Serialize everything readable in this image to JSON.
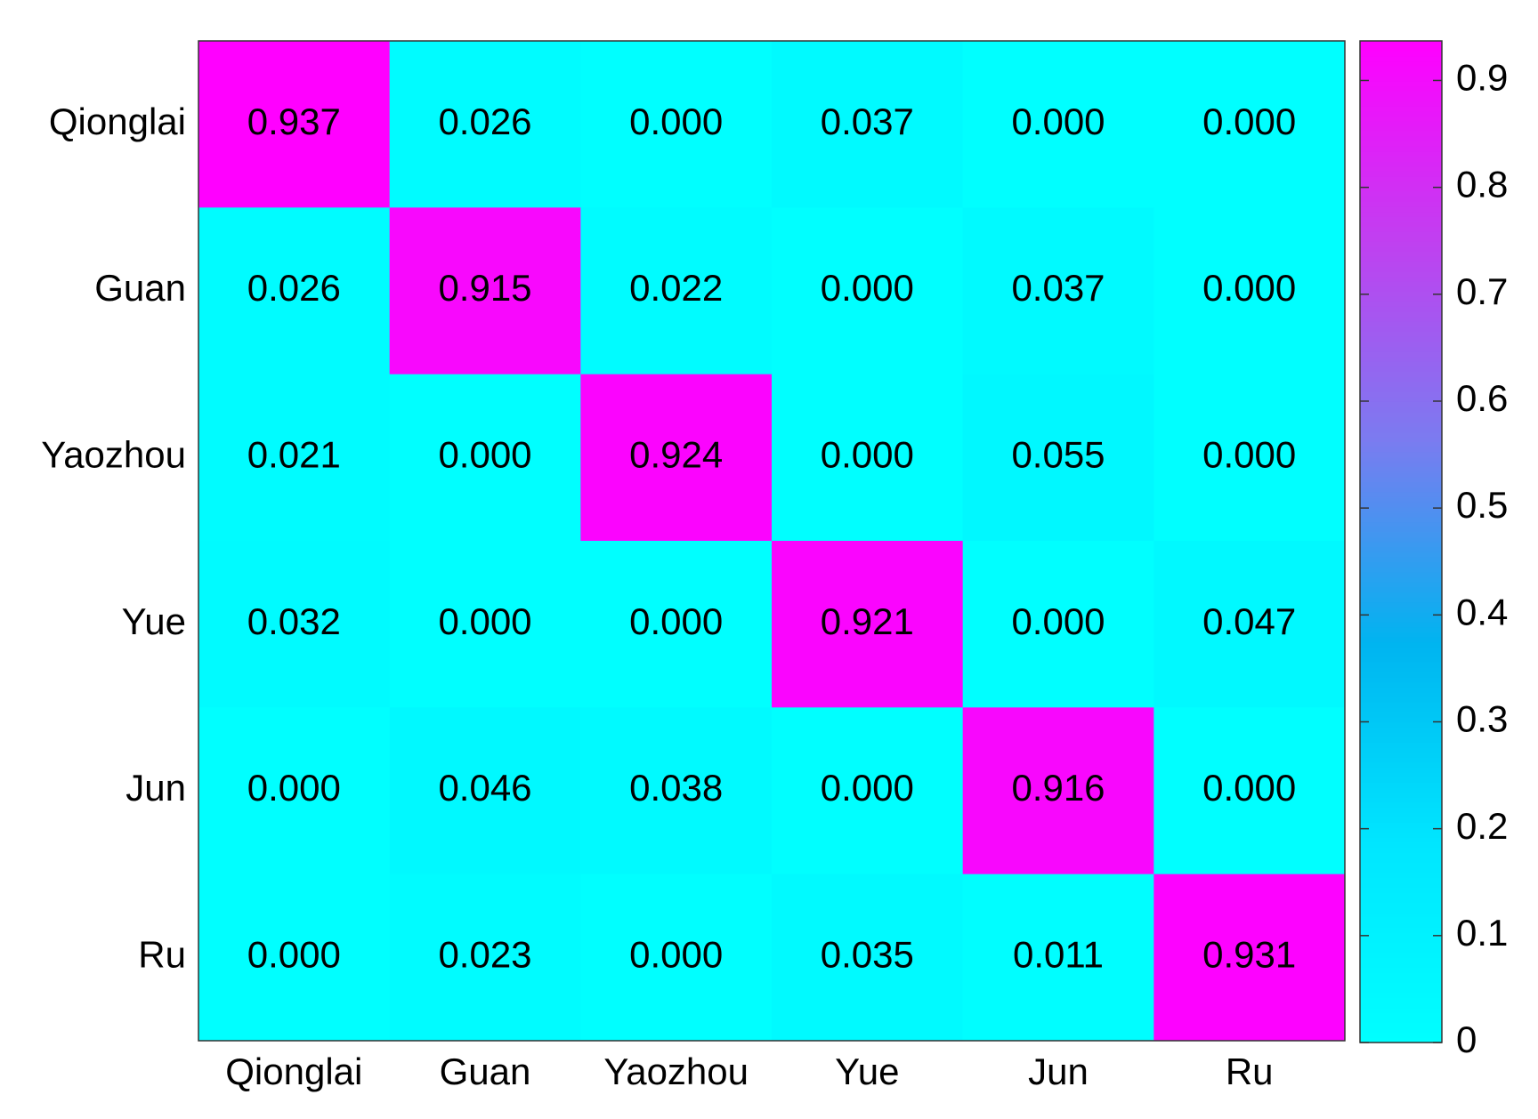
{
  "chart_data": {
    "type": "heatmap",
    "x_categories": [
      "Qionglai",
      "Guan",
      "Yaozhou",
      "Yue",
      "Jun",
      "Ru"
    ],
    "y_categories": [
      "Qionglai",
      "Guan",
      "Yaozhou",
      "Yue",
      "Jun",
      "Ru"
    ],
    "values": [
      [
        0.937,
        0.026,
        0,
        0.037,
        0,
        0
      ],
      [
        0.026,
        0.915,
        0.022,
        0,
        0.037,
        0
      ],
      [
        0.021,
        0,
        0.924,
        0,
        0.055,
        0
      ],
      [
        0.032,
        0,
        0,
        0.921,
        0,
        0.047
      ],
      [
        0,
        0.046,
        0.038,
        0,
        0.916,
        0
      ],
      [
        0,
        0.023,
        0,
        0.035,
        0.011,
        0.931
      ]
    ],
    "value_labels": [
      [
        "0.937",
        "0.026",
        "0.000",
        "0.037",
        "0.000",
        "0.000"
      ],
      [
        "0.026",
        "0.915",
        "0.022",
        "0.000",
        "0.037",
        "0.000"
      ],
      [
        "0.021",
        "0.000",
        "0.924",
        "0.000",
        "0.055",
        "0.000"
      ],
      [
        "0.032",
        "0.000",
        "0.000",
        "0.921",
        "0.000",
        "0.047"
      ],
      [
        "0.000",
        "0.046",
        "0.038",
        "0.000",
        "0.916",
        "0.000"
      ],
      [
        "0.000",
        "0.023",
        "0.000",
        "0.035",
        "0.011",
        "0.931"
      ]
    ],
    "clim": [
      0,
      0.937
    ],
    "cticks": [
      0,
      0.1,
      0.2,
      0.3,
      0.4,
      0.5,
      0.6,
      0.7,
      0.8,
      0.9
    ],
    "colormap": [
      "#00ffff",
      "#00e6ff",
      "#00b4f0",
      "#7a7cf0",
      "#c040f0",
      "#ff00ff"
    ]
  }
}
